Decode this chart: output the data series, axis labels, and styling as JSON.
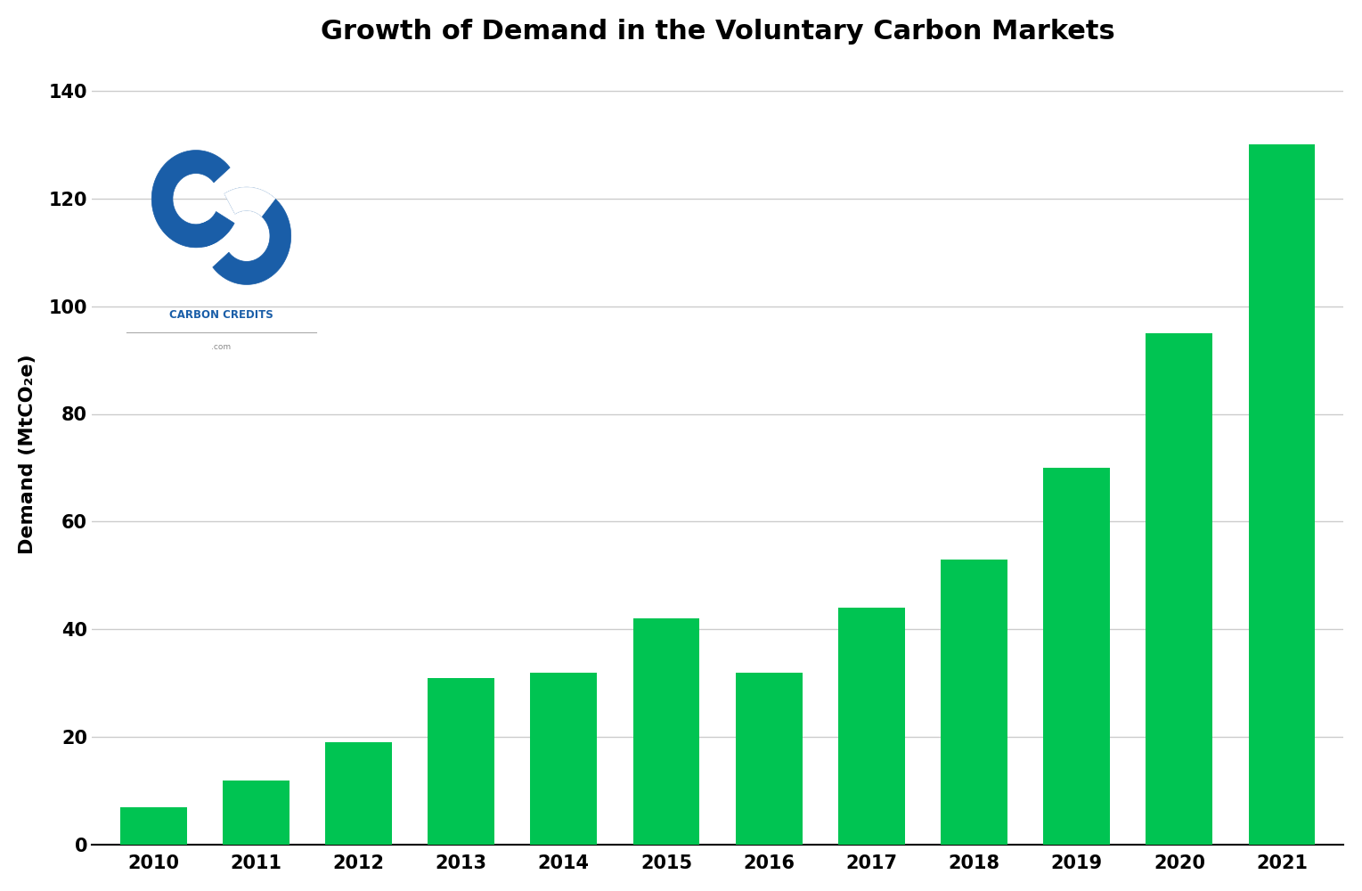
{
  "title": "Growth of Demand in the Voluntary Carbon Markets",
  "years": [
    2010,
    2011,
    2012,
    2013,
    2014,
    2015,
    2016,
    2017,
    2018,
    2019,
    2020,
    2021
  ],
  "values": [
    7,
    12,
    19,
    31,
    32,
    42,
    32,
    44,
    53,
    70,
    95,
    130
  ],
  "bar_color": "#00C452",
  "background_color": "#FFFFFF",
  "ylabel": "Demand (MtCO₂e)",
  "ylim": [
    0,
    145
  ],
  "yticks": [
    0,
    20,
    40,
    60,
    80,
    100,
    120,
    140
  ],
  "grid_color": "#CCCCCC",
  "title_fontsize": 22,
  "axis_fontsize": 16,
  "tick_fontsize": 15,
  "bar_width": 0.65,
  "logo_blue": "#1A5EA8",
  "logo_text_color": "#1A5EA8",
  "logo_com_color": "#888888"
}
